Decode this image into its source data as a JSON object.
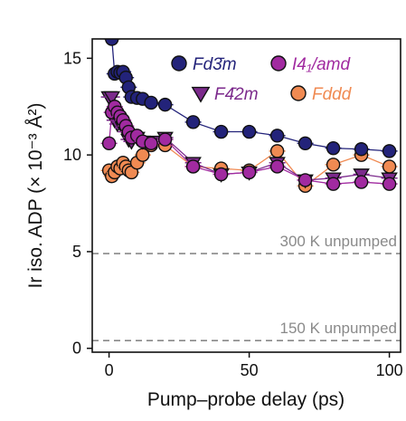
{
  "chart_data": {
    "type": "scatter",
    "xlabel": "Pump–probe delay (ps)",
    "ylabel": "Ir iso. ADP (× 10⁻³ Å²)",
    "xlim": [
      -6,
      104
    ],
    "ylim": [
      -0.2,
      16
    ],
    "xticks": [
      0,
      50,
      100
    ],
    "yticks": [
      0,
      5,
      10,
      15
    ],
    "grid": false,
    "legend_position": "top-right",
    "series": [
      {
        "name": "Fd3̄m",
        "color": "#23237a",
        "marker": "circle",
        "points": [
          [
            1,
            16
          ],
          [
            2,
            14.2
          ],
          [
            3,
            14.3
          ],
          [
            4,
            14.25
          ],
          [
            5,
            14.3
          ],
          [
            6,
            14.0
          ],
          [
            7,
            13.5
          ],
          [
            8,
            13.0
          ],
          [
            10,
            12.95
          ],
          [
            12,
            12.9
          ],
          [
            15,
            12.7
          ],
          [
            20,
            12.6
          ],
          [
            30,
            11.7
          ],
          [
            40,
            11.2
          ],
          [
            50,
            11.2
          ],
          [
            60,
            11.0
          ],
          [
            70,
            10.6
          ],
          [
            80,
            10.35
          ],
          [
            90,
            10.3
          ],
          [
            100,
            10.2
          ]
        ]
      },
      {
        "name": "I4₁/amd",
        "color": "#a12aa0",
        "marker": "circle",
        "points": [
          [
            0,
            10.6
          ],
          [
            1,
            12.2
          ],
          [
            2,
            12.5
          ],
          [
            3,
            12.2
          ],
          [
            4,
            12.0
          ],
          [
            5,
            11.8
          ],
          [
            6,
            11.5
          ],
          [
            7,
            11.2
          ],
          [
            8,
            10.9
          ],
          [
            10,
            11.0
          ],
          [
            12,
            10.7
          ],
          [
            15,
            10.6
          ],
          [
            20,
            10.8
          ],
          [
            30,
            9.4
          ],
          [
            40,
            9.0
          ],
          [
            50,
            9.1
          ],
          [
            60,
            9.4
          ],
          [
            70,
            8.7
          ],
          [
            80,
            8.5
          ],
          [
            90,
            8.6
          ],
          [
            100,
            8.5
          ]
        ]
      },
      {
        "name": "F4̄2m",
        "color": "#7c2a8c",
        "marker": "triangle-down",
        "points": [
          [
            0,
            13.0
          ],
          [
            1,
            13.0
          ],
          [
            2,
            11.8
          ],
          [
            3,
            11.6
          ],
          [
            4,
            11.7
          ],
          [
            5,
            11.4
          ],
          [
            6,
            11.2
          ],
          [
            7,
            10.8
          ],
          [
            8,
            10.7
          ],
          [
            10,
            10.9
          ],
          [
            12,
            10.7
          ],
          [
            15,
            10.7
          ],
          [
            20,
            10.9
          ],
          [
            30,
            9.6
          ],
          [
            40,
            9.0
          ],
          [
            50,
            9.1
          ],
          [
            60,
            9.6
          ],
          [
            70,
            8.7
          ],
          [
            80,
            8.8
          ],
          [
            90,
            9.0
          ],
          [
            100,
            8.8
          ]
        ]
      },
      {
        "name": "Fddd",
        "color": "#f08a52",
        "marker": "circle",
        "points": [
          [
            0,
            9.2
          ],
          [
            1,
            8.9
          ],
          [
            2,
            9.1
          ],
          [
            3,
            9.4
          ],
          [
            4,
            9.3
          ],
          [
            5,
            9.6
          ],
          [
            6,
            9.4
          ],
          [
            7,
            9.2
          ],
          [
            8,
            9.1
          ],
          [
            10,
            9.6
          ],
          [
            12,
            10.0
          ],
          [
            15,
            10.5
          ],
          [
            20,
            10.5
          ],
          [
            30,
            9.4
          ],
          [
            40,
            9.3
          ],
          [
            50,
            9.2
          ],
          [
            60,
            10.2
          ],
          [
            70,
            8.4
          ],
          [
            80,
            9.5
          ],
          [
            90,
            10.0
          ],
          [
            100,
            9.4
          ]
        ]
      }
    ],
    "reference_lines": [
      {
        "y": 4.9,
        "label": "300 K unpumped",
        "color": "#888888",
        "style": "dashed"
      },
      {
        "y": 0.4,
        "label": "150 K unpumped",
        "color": "#888888",
        "style": "dashed"
      }
    ]
  }
}
